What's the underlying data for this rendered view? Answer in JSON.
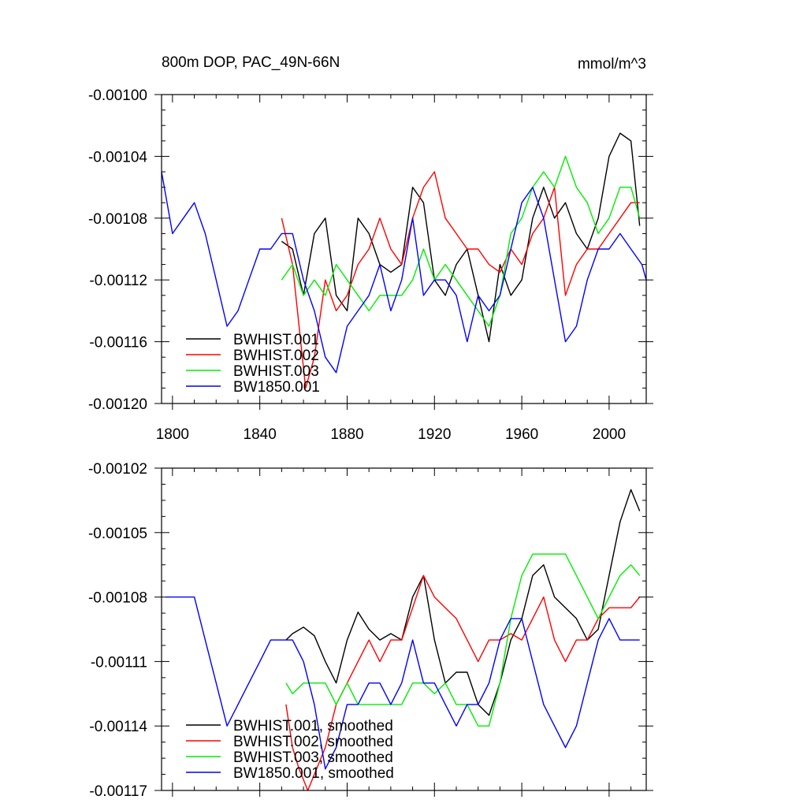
{
  "chart_data": [
    {
      "type": "line",
      "title": "800m DOP, PAC_49N-66N",
      "units": "mmol/m^3",
      "xlim": [
        1795,
        2017
      ],
      "ylim": [
        -0.0012,
        -0.001
      ],
      "xticks": [
        1800,
        1840,
        1880,
        1920,
        1960,
        2000
      ],
      "xtick_labels": [
        "1800",
        "1840",
        "1880",
        "1920",
        "1960",
        "2000"
      ],
      "yticks": [
        -0.001,
        -0.00104,
        -0.00108,
        -0.00112,
        -0.00116,
        -0.0012
      ],
      "ytick_labels": [
        "-0.00100",
        "-0.00104",
        "-0.00108",
        "-0.00112",
        "-0.00116",
        "-0.00120"
      ],
      "legend_position": "bottom-left",
      "series": [
        {
          "name": "BWHIST.001",
          "color": "#000000",
          "x": [
            1850,
            1855,
            1860,
            1865,
            1870,
            1875,
            1880,
            1885,
            1890,
            1895,
            1900,
            1905,
            1910,
            1915,
            1920,
            1925,
            1930,
            1935,
            1940,
            1945,
            1950,
            1955,
            1960,
            1965,
            1970,
            1975,
            1980,
            1985,
            1990,
            1995,
            2000,
            2005,
            2010,
            2014
          ],
          "values": [
            -0.001095,
            -0.0011,
            -0.00113,
            -0.00109,
            -0.00108,
            -0.00113,
            -0.00114,
            -0.00108,
            -0.00109,
            -0.00111,
            -0.001115,
            -0.00111,
            -0.00106,
            -0.00107,
            -0.00112,
            -0.00113,
            -0.00111,
            -0.0011,
            -0.00113,
            -0.00116,
            -0.00111,
            -0.00113,
            -0.00112,
            -0.00108,
            -0.00106,
            -0.00108,
            -0.00107,
            -0.00109,
            -0.0011,
            -0.00108,
            -0.00104,
            -0.001025,
            -0.00103,
            -0.001085
          ]
        },
        {
          "name": "BWHIST.002",
          "color": "#ff0000",
          "x": [
            1850,
            1855,
            1858,
            1861,
            1865,
            1870,
            1875,
            1880,
            1885,
            1890,
            1895,
            1900,
            1905,
            1910,
            1915,
            1920,
            1925,
            1930,
            1935,
            1940,
            1945,
            1950,
            1955,
            1960,
            1965,
            1970,
            1975,
            1980,
            1985,
            1990,
            1995,
            2000,
            2005,
            2010,
            2014
          ],
          "values": [
            -0.00108,
            -0.00111,
            -0.00115,
            -0.00119,
            -0.00117,
            -0.00112,
            -0.00114,
            -0.00113,
            -0.00111,
            -0.0011,
            -0.00108,
            -0.0011,
            -0.00111,
            -0.00108,
            -0.00106,
            -0.00105,
            -0.00108,
            -0.00109,
            -0.0011,
            -0.0011,
            -0.00111,
            -0.001115,
            -0.0011,
            -0.00111,
            -0.00109,
            -0.00108,
            -0.00106,
            -0.00113,
            -0.00111,
            -0.0011,
            -0.0011,
            -0.00109,
            -0.00108,
            -0.00107,
            -0.00107
          ]
        },
        {
          "name": "BWHIST.003",
          "color": "#00ee00",
          "x": [
            1850,
            1855,
            1860,
            1865,
            1870,
            1875,
            1880,
            1885,
            1890,
            1895,
            1900,
            1905,
            1910,
            1915,
            1920,
            1925,
            1930,
            1935,
            1940,
            1945,
            1950,
            1955,
            1960,
            1965,
            1970,
            1975,
            1980,
            1985,
            1990,
            1995,
            2000,
            2005,
            2010,
            2014
          ],
          "values": [
            -0.00112,
            -0.00111,
            -0.00113,
            -0.00112,
            -0.00113,
            -0.00111,
            -0.00112,
            -0.00113,
            -0.00114,
            -0.00113,
            -0.00113,
            -0.00113,
            -0.00112,
            -0.0011,
            -0.00112,
            -0.00111,
            -0.00112,
            -0.00113,
            -0.00114,
            -0.00115,
            -0.00113,
            -0.00109,
            -0.00108,
            -0.00106,
            -0.00105,
            -0.00106,
            -0.00104,
            -0.00106,
            -0.00107,
            -0.00109,
            -0.00108,
            -0.00106,
            -0.00106,
            -0.00108
          ]
        },
        {
          "name": "BW1850.001",
          "color": "#0000ff",
          "x": [
            1795,
            1800,
            1805,
            1810,
            1815,
            1820,
            1825,
            1830,
            1835,
            1840,
            1845,
            1850,
            1855,
            1860,
            1865,
            1870,
            1875,
            1880,
            1885,
            1890,
            1895,
            1900,
            1905,
            1910,
            1915,
            1920,
            1925,
            1930,
            1935,
            1940,
            1945,
            1950,
            1955,
            1960,
            1965,
            1970,
            1975,
            1980,
            1985,
            1990,
            1995,
            2000,
            2005,
            2010,
            2015,
            2017
          ],
          "values": [
            -0.00105,
            -0.00109,
            -0.00108,
            -0.00107,
            -0.00109,
            -0.00112,
            -0.00115,
            -0.00114,
            -0.00112,
            -0.0011,
            -0.0011,
            -0.00109,
            -0.00109,
            -0.00112,
            -0.00114,
            -0.00117,
            -0.00118,
            -0.00115,
            -0.00114,
            -0.00113,
            -0.00111,
            -0.00114,
            -0.00112,
            -0.00108,
            -0.00113,
            -0.00112,
            -0.00112,
            -0.00113,
            -0.00116,
            -0.00113,
            -0.00114,
            -0.00113,
            -0.0011,
            -0.00107,
            -0.00106,
            -0.00108,
            -0.00112,
            -0.00116,
            -0.00115,
            -0.00112,
            -0.0011,
            -0.0011,
            -0.00109,
            -0.0011,
            -0.00111,
            -0.00112
          ]
        }
      ]
    },
    {
      "type": "line",
      "xlim": [
        1795,
        2017
      ],
      "ylim": [
        -0.00117,
        -0.00102
      ],
      "xticks": [
        1800,
        1840,
        1880,
        1920,
        1960,
        2000
      ],
      "yticks": [
        -0.00102,
        -0.00105,
        -0.00108,
        -0.00111,
        -0.00114,
        -0.00117
      ],
      "ytick_labels": [
        "-0.00102",
        "-0.00105",
        "-0.00108",
        "-0.00111",
        "-0.00114",
        "-0.00117"
      ],
      "legend_position": "bottom-left",
      "series": [
        {
          "name": "BWHIST.001, smoothed",
          "color": "#000000",
          "x": [
            1852,
            1855,
            1860,
            1865,
            1870,
            1875,
            1880,
            1885,
            1890,
            1895,
            1900,
            1905,
            1910,
            1915,
            1920,
            1925,
            1930,
            1935,
            1940,
            1945,
            1950,
            1955,
            1960,
            1965,
            1970,
            1975,
            1980,
            1985,
            1990,
            1995,
            2000,
            2005,
            2010,
            2014
          ],
          "values": [
            -0.0011,
            -0.001097,
            -0.001094,
            -0.001098,
            -0.00111,
            -0.00112,
            -0.0011,
            -0.001087,
            -0.001095,
            -0.0011,
            -0.001097,
            -0.0011,
            -0.00108,
            -0.00107,
            -0.0011,
            -0.00112,
            -0.001115,
            -0.001115,
            -0.00113,
            -0.001135,
            -0.00112,
            -0.0011,
            -0.00109,
            -0.00107,
            -0.001065,
            -0.00108,
            -0.001085,
            -0.00109,
            -0.0011,
            -0.001095,
            -0.00107,
            -0.001045,
            -0.00103,
            -0.00104
          ]
        },
        {
          "name": "BWHIST.002, smoothed",
          "color": "#ff0000",
          "x": [
            1852,
            1855,
            1858,
            1862,
            1866,
            1870,
            1875,
            1880,
            1885,
            1890,
            1895,
            1900,
            1905,
            1910,
            1915,
            1920,
            1925,
            1930,
            1935,
            1940,
            1945,
            1950,
            1955,
            1960,
            1965,
            1970,
            1975,
            1980,
            1985,
            1990,
            1995,
            2000,
            2005,
            2010,
            2014
          ],
          "values": [
            -0.00113,
            -0.00115,
            -0.00116,
            -0.00117,
            -0.00116,
            -0.00115,
            -0.00113,
            -0.00112,
            -0.00111,
            -0.0011,
            -0.00111,
            -0.0011,
            -0.0011,
            -0.001085,
            -0.00107,
            -0.00108,
            -0.001085,
            -0.00109,
            -0.0011,
            -0.00111,
            -0.0011,
            -0.0011,
            -0.001097,
            -0.0011,
            -0.00109,
            -0.00108,
            -0.0011,
            -0.00111,
            -0.0011,
            -0.0011,
            -0.00109,
            -0.001085,
            -0.001085,
            -0.001085,
            -0.00108
          ]
        },
        {
          "name": "BWHIST.003, smoothed",
          "color": "#00ee00",
          "x": [
            1852,
            1855,
            1860,
            1865,
            1870,
            1875,
            1880,
            1885,
            1890,
            1895,
            1900,
            1905,
            1910,
            1915,
            1920,
            1925,
            1930,
            1935,
            1940,
            1945,
            1950,
            1955,
            1960,
            1965,
            1970,
            1975,
            1980,
            1985,
            1990,
            1995,
            2000,
            2005,
            2010,
            2014
          ],
          "values": [
            -0.00112,
            -0.001125,
            -0.00112,
            -0.00112,
            -0.00112,
            -0.00113,
            -0.00112,
            -0.00113,
            -0.00113,
            -0.00113,
            -0.00113,
            -0.00113,
            -0.00112,
            -0.00112,
            -0.001125,
            -0.00112,
            -0.00113,
            -0.00113,
            -0.00114,
            -0.00114,
            -0.00112,
            -0.00109,
            -0.00107,
            -0.00106,
            -0.00106,
            -0.00106,
            -0.00106,
            -0.00107,
            -0.00108,
            -0.00109,
            -0.00108,
            -0.00107,
            -0.001065,
            -0.00107
          ]
        },
        {
          "name": "BW1850.001, smoothed",
          "color": "#0000ff",
          "x": [
            1797,
            1800,
            1805,
            1810,
            1815,
            1820,
            1825,
            1830,
            1835,
            1840,
            1845,
            1850,
            1855,
            1860,
            1865,
            1870,
            1875,
            1880,
            1885,
            1890,
            1895,
            1900,
            1905,
            1910,
            1915,
            1920,
            1925,
            1930,
            1935,
            1940,
            1945,
            1950,
            1955,
            1960,
            1965,
            1970,
            1975,
            1980,
            1985,
            1990,
            1995,
            2000,
            2005,
            2010,
            2014
          ],
          "values": [
            -0.00108,
            -0.00108,
            -0.00108,
            -0.00108,
            -0.0011,
            -0.00112,
            -0.00114,
            -0.00113,
            -0.00112,
            -0.00111,
            -0.0011,
            -0.0011,
            -0.0011,
            -0.00111,
            -0.00113,
            -0.00116,
            -0.00115,
            -0.00113,
            -0.00113,
            -0.00112,
            -0.00112,
            -0.00113,
            -0.00112,
            -0.0011,
            -0.00112,
            -0.00112,
            -0.00113,
            -0.00114,
            -0.00113,
            -0.00113,
            -0.00112,
            -0.0011,
            -0.00109,
            -0.00109,
            -0.00111,
            -0.00113,
            -0.00114,
            -0.00115,
            -0.00114,
            -0.00112,
            -0.0011,
            -0.00109,
            -0.0011,
            -0.0011,
            -0.0011
          ]
        }
      ]
    }
  ]
}
